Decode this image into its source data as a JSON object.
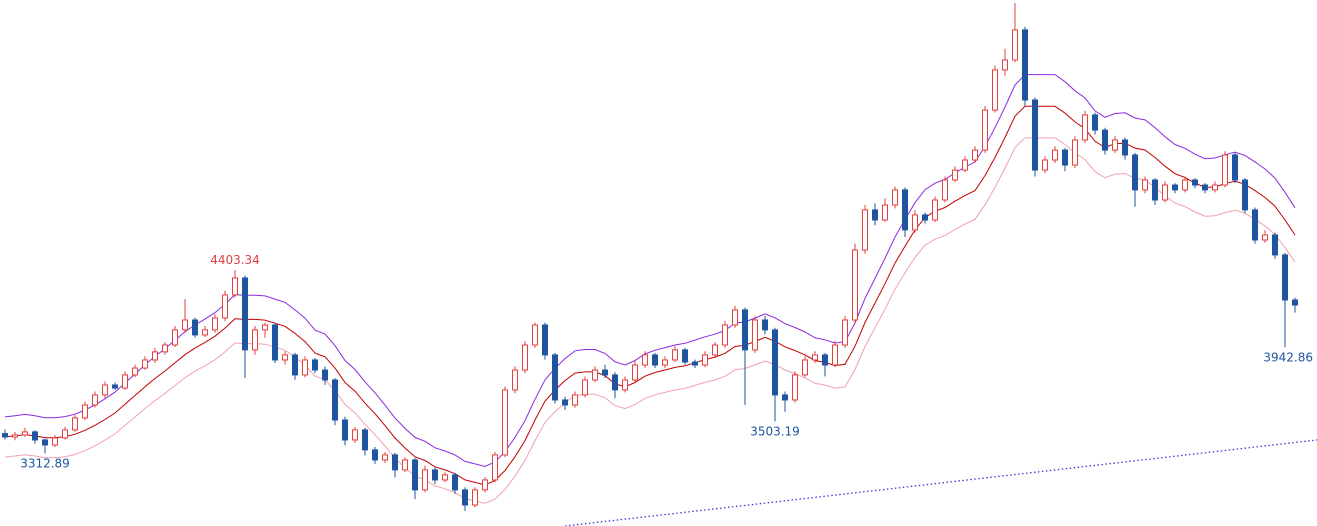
{
  "chart_data": {
    "type": "candlestick",
    "title": "",
    "xlabel": "",
    "ylabel": "",
    "ylim": [
      2880,
      6010
    ],
    "grid": false,
    "colors": {
      "up": "#e0403f",
      "down": "#1f55a0",
      "upper_line": "#8a2be2",
      "mid_line": "#c00000",
      "lower_line": "#f0a0b0",
      "trendline": "#3a3ad0"
    },
    "candles_ohlc": [
      [
        3430,
        3455,
        3395,
        3410
      ],
      [
        3410,
        3440,
        3390,
        3422
      ],
      [
        3422,
        3465,
        3410,
        3440
      ],
      [
        3440,
        3450,
        3370,
        3392
      ],
      [
        3392,
        3400,
        3312.89,
        3362
      ],
      [
        3362,
        3420,
        3350,
        3404
      ],
      [
        3404,
        3470,
        3395,
        3452
      ],
      [
        3452,
        3540,
        3440,
        3523
      ],
      [
        3523,
        3620,
        3510,
        3600
      ],
      [
        3600,
        3680,
        3585,
        3660
      ],
      [
        3660,
        3740,
        3640,
        3719
      ],
      [
        3719,
        3735,
        3690,
        3701
      ],
      [
        3701,
        3800,
        3690,
        3779
      ],
      [
        3779,
        3840,
        3765,
        3820
      ],
      [
        3820,
        3890,
        3810,
        3868
      ],
      [
        3868,
        3940,
        3850,
        3916
      ],
      [
        3916,
        3975,
        3900,
        3957
      ],
      [
        3957,
        4070,
        3945,
        4047
      ],
      [
        4047,
        4230,
        4030,
        4106
      ],
      [
        4106,
        4120,
        4000,
        4017
      ],
      [
        4017,
        4070,
        4005,
        4047
      ],
      [
        4047,
        4140,
        4030,
        4118
      ],
      [
        4118,
        4280,
        4100,
        4255
      ],
      [
        4255,
        4403.34,
        4240,
        4356
      ],
      [
        4356,
        4370,
        3760,
        3928
      ],
      [
        3928,
        4070,
        3900,
        4047
      ],
      [
        4047,
        4090,
        4000,
        4076
      ],
      [
        4076,
        4090,
        3850,
        3868
      ],
      [
        3868,
        3920,
        3840,
        3898
      ],
      [
        3898,
        3910,
        3750,
        3779
      ],
      [
        3779,
        3890,
        3765,
        3868
      ],
      [
        3868,
        3880,
        3790,
        3808
      ],
      [
        3808,
        3830,
        3720,
        3749
      ],
      [
        3749,
        3760,
        3480,
        3511
      ],
      [
        3511,
        3530,
        3360,
        3392
      ],
      [
        3392,
        3470,
        3375,
        3452
      ],
      [
        3452,
        3465,
        3300,
        3333
      ],
      [
        3333,
        3350,
        3250,
        3273
      ],
      [
        3273,
        3320,
        3255,
        3303
      ],
      [
        3303,
        3315,
        3170,
        3214
      ],
      [
        3214,
        3290,
        3200,
        3273
      ],
      [
        3273,
        3285,
        3040,
        3095
      ],
      [
        3095,
        3240,
        3080,
        3214
      ],
      [
        3214,
        3230,
        3130,
        3154
      ],
      [
        3154,
        3200,
        3140,
        3184
      ],
      [
        3184,
        3195,
        3070,
        3095
      ],
      [
        3095,
        3110,
        2970,
        3005
      ],
      [
        3005,
        3110,
        2990,
        3095
      ],
      [
        3095,
        3170,
        3080,
        3154
      ],
      [
        3154,
        3320,
        3140,
        3303
      ],
      [
        3303,
        3710,
        3290,
        3690
      ],
      [
        3690,
        3830,
        3670,
        3808
      ],
      [
        3808,
        3980,
        3790,
        3957
      ],
      [
        3957,
        4090,
        3940,
        4076
      ],
      [
        4076,
        4090,
        3870,
        3898
      ],
      [
        3898,
        3910,
        3610,
        3630
      ],
      [
        3630,
        3650,
        3570,
        3600
      ],
      [
        3600,
        3680,
        3585,
        3660
      ],
      [
        3660,
        3770,
        3645,
        3749
      ],
      [
        3749,
        3830,
        3735,
        3808
      ],
      [
        3808,
        3840,
        3760,
        3779
      ],
      [
        3779,
        3795,
        3640,
        3690
      ],
      [
        3690,
        3770,
        3675,
        3749
      ],
      [
        3749,
        3860,
        3735,
        3838
      ],
      [
        3838,
        3920,
        3820,
        3898
      ],
      [
        3898,
        3910,
        3820,
        3838
      ],
      [
        3838,
        3890,
        3820,
        3868
      ],
      [
        3868,
        3950,
        3855,
        3928
      ],
      [
        3928,
        3940,
        3840,
        3856
      ],
      [
        3856,
        3870,
        3820,
        3838
      ],
      [
        3838,
        3920,
        3825,
        3898
      ],
      [
        3898,
        3975,
        3880,
        3957
      ],
      [
        3957,
        4100,
        3940,
        4076
      ],
      [
        4076,
        4190,
        4060,
        4166
      ],
      [
        4166,
        4180,
        3600,
        3928
      ],
      [
        3928,
        4130,
        3910,
        4106
      ],
      [
        4106,
        4130,
        4020,
        4047
      ],
      [
        4047,
        4060,
        3503.19,
        3660
      ],
      [
        3660,
        3680,
        3560,
        3630
      ],
      [
        3630,
        3800,
        3615,
        3779
      ],
      [
        3779,
        3890,
        3765,
        3868
      ],
      [
        3868,
        3920,
        3850,
        3898
      ],
      [
        3898,
        3910,
        3770,
        3838
      ],
      [
        3838,
        3980,
        3825,
        3957
      ],
      [
        3957,
        4130,
        3940,
        4106
      ],
      [
        4106,
        4560,
        4090,
        4522
      ],
      [
        4522,
        4790,
        4500,
        4761
      ],
      [
        4761,
        4800,
        4670,
        4701
      ],
      [
        4701,
        4830,
        4690,
        4790
      ],
      [
        4790,
        4900,
        4770,
        4880
      ],
      [
        4880,
        4895,
        4600,
        4642
      ],
      [
        4642,
        4760,
        4625,
        4731
      ],
      [
        4731,
        4745,
        4680,
        4701
      ],
      [
        4701,
        4840,
        4690,
        4820
      ],
      [
        4820,
        4960,
        4805,
        4939
      ],
      [
        4939,
        5020,
        4925,
        4998
      ],
      [
        4998,
        5080,
        4985,
        5058
      ],
      [
        5058,
        5140,
        5040,
        5117
      ],
      [
        5117,
        5380,
        5100,
        5355
      ],
      [
        5355,
        5620,
        5340,
        5594
      ],
      [
        5594,
        5720,
        5560,
        5653
      ],
      [
        5653,
        5992,
        5640,
        5832
      ],
      [
        5832,
        5850,
        5380,
        5415
      ],
      [
        5415,
        5430,
        4960,
        4998
      ],
      [
        4998,
        5080,
        4980,
        5058
      ],
      [
        5058,
        5140,
        5040,
        5117
      ],
      [
        5117,
        5130,
        4990,
        5028
      ],
      [
        5028,
        5200,
        5010,
        5177
      ],
      [
        5177,
        5350,
        5160,
        5326
      ],
      [
        5326,
        5340,
        5210,
        5236
      ],
      [
        5236,
        5250,
        5090,
        5117
      ],
      [
        5117,
        5200,
        5100,
        5177
      ],
      [
        5177,
        5190,
        5060,
        5088
      ],
      [
        5088,
        5100,
        4780,
        4880
      ],
      [
        4880,
        4960,
        4860,
        4939
      ],
      [
        4939,
        4950,
        4790,
        4820
      ],
      [
        4820,
        4930,
        4805,
        4909
      ],
      [
        4909,
        4920,
        4860,
        4880
      ],
      [
        4880,
        4960,
        4865,
        4939
      ],
      [
        4939,
        4950,
        4890,
        4909
      ],
      [
        4909,
        4920,
        4860,
        4880
      ],
      [
        4880,
        4930,
        4865,
        4909
      ],
      [
        4909,
        5110,
        4895,
        5088
      ],
      [
        5088,
        5100,
        4920,
        4939
      ],
      [
        4939,
        4950,
        4740,
        4761
      ],
      [
        4761,
        4775,
        4560,
        4582
      ],
      [
        4582,
        4640,
        4565,
        4612
      ],
      [
        4612,
        4625,
        4470,
        4493
      ],
      [
        4493,
        4505,
        3942.86,
        4225
      ],
      [
        4225,
        4240,
        4150,
        4195
      ]
    ],
    "annotations": [
      {
        "text": "4403.34",
        "candle": 23,
        "at": "high",
        "color": "#e0403f"
      },
      {
        "text": "3312.89",
        "candle": 4,
        "at": "low",
        "color": "#1f55a0"
      },
      {
        "text": "3503.19",
        "candle": 77,
        "at": "low",
        "color": "#1f55a0"
      },
      {
        "text": "3942.86",
        "candle": 128,
        "at": "low",
        "color": "#1f55a0"
      }
    ],
    "trendline": {
      "from": [
        56,
        2880
      ],
      "to": [
        131.2,
        3392
      ],
      "style": "dotted"
    }
  }
}
